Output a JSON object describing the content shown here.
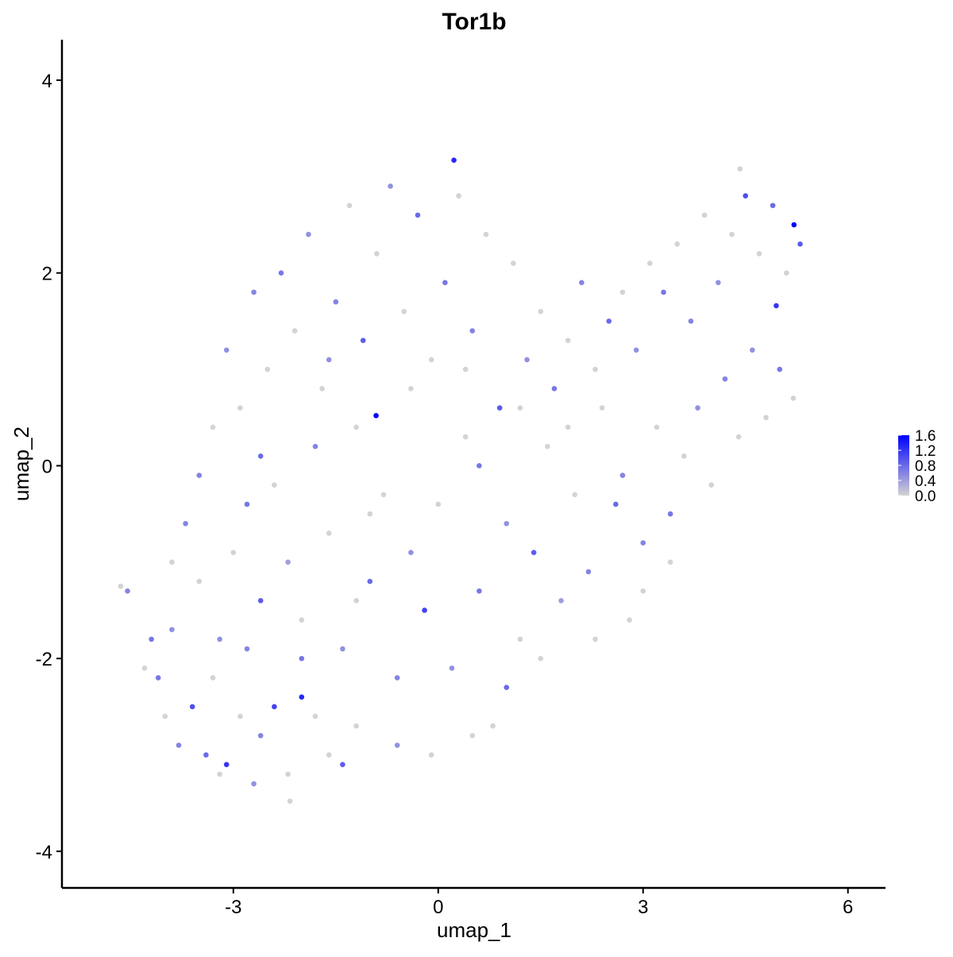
{
  "chart_data": {
    "type": "scatter",
    "title": "Tor1b",
    "x_label": "umap_1",
    "y_label": "umap_2",
    "xlim": [
      -5.51,
      6.55
    ],
    "ylim": [
      -4.38,
      4.42
    ],
    "xticks": [
      -3,
      0,
      3,
      6
    ],
    "yticks": [
      -4,
      -2,
      0,
      2,
      4
    ],
    "low_color": "#d3d3d3",
    "high_color": "#0000ff",
    "color_lim": [
      0,
      1.6
    ],
    "color_ticks": [
      {
        "value": 0,
        "label": "0.0"
      },
      {
        "value": 0.4,
        "label": "0.4"
      },
      {
        "value": 0.8,
        "label": "0.8"
      },
      {
        "value": 1.2,
        "label": "1.2"
      },
      {
        "value": 1.6,
        "label": "1.6"
      }
    ],
    "x": [
      5.21,
      -0.91,
      0.23,
      4.95,
      -4.65,
      -2.17,
      4.42,
      -4.55,
      -4.3,
      -4.1,
      -3.9,
      -3.6,
      -3.4,
      -3.1,
      -2.9,
      -2.6,
      -2.4,
      -2.2,
      -2.0,
      -1.8,
      -1.4,
      -1.2,
      -3.7,
      -3.5,
      -3.2,
      -3.0,
      -2.8,
      -2.6,
      -2.4,
      -2.2,
      -2.0,
      -1.8,
      -1.6,
      -1.4,
      -1.2,
      -1.0,
      -0.8,
      -0.6,
      -0.4,
      -0.2,
      0.0,
      0.2,
      0.4,
      0.6,
      0.8,
      1.0,
      1.2,
      1.4,
      1.6,
      1.8,
      2.0,
      2.2,
      2.4,
      2.6,
      2.8,
      3.0,
      3.2,
      3.4,
      3.6,
      3.8,
      4.0,
      4.2,
      4.4,
      4.6,
      4.8,
      5.0,
      5.2,
      5.3,
      5.1,
      4.9,
      4.7,
      4.5,
      4.3,
      4.1,
      3.9,
      3.7,
      3.5,
      3.3,
      3.1,
      2.9,
      2.7,
      2.5,
      2.3,
      2.1,
      1.9,
      1.7,
      1.5,
      1.3,
      1.1,
      0.9,
      0.7,
      0.5,
      0.3,
      0.1,
      -0.1,
      -0.3,
      -0.5,
      -0.7,
      -0.9,
      -1.1,
      -1.3,
      -1.5,
      -1.7,
      -1.9,
      -2.1,
      -2.3,
      -2.5,
      -2.7,
      -2.9,
      -3.1,
      -3.3,
      -3.5,
      -3.9,
      -4.2,
      -4.0,
      -3.8,
      -3.2,
      -2.7,
      -1.6,
      -0.6,
      -0.1,
      0.5,
      1.0,
      1.5,
      2.3,
      3.0,
      3.4,
      2.7,
      1.9,
      -2.6,
      -1.0,
      0.6,
      -0.4,
      1.2,
      -1.6,
      -2.0,
      -3.3,
      -2.8,
      0.4,
      -1.2
    ],
    "y": [
      2.5,
      0.52,
      3.17,
      1.66,
      -1.25,
      -3.48,
      3.08,
      -1.3,
      -2.1,
      -2.2,
      -1.7,
      -2.5,
      -3.0,
      -3.1,
      -2.6,
      -2.8,
      -2.5,
      -3.2,
      -2.0,
      -2.6,
      -3.1,
      -2.7,
      -0.6,
      -1.2,
      -1.8,
      -0.9,
      -0.4,
      -1.4,
      -0.2,
      -1.0,
      -1.6,
      0.2,
      -0.7,
      -1.9,
      0.4,
      -1.2,
      -0.3,
      -2.2,
      0.8,
      -1.5,
      -0.4,
      -2.1,
      0.3,
      -1.3,
      -2.7,
      -0.6,
      -1.8,
      -0.9,
      0.2,
      -1.4,
      -0.3,
      -1.1,
      0.6,
      -0.4,
      -1.6,
      -0.8,
      0.4,
      -0.5,
      0.1,
      0.6,
      -0.2,
      0.9,
      0.3,
      1.2,
      0.5,
      1.0,
      0.7,
      2.3,
      2.0,
      2.7,
      2.2,
      2.8,
      2.4,
      1.9,
      2.6,
      1.5,
      2.3,
      1.8,
      2.1,
      1.2,
      1.8,
      1.5,
      1.0,
      1.9,
      1.3,
      0.8,
      1.6,
      1.1,
      2.1,
      0.6,
      2.4,
      1.4,
      2.8,
      1.9,
      1.1,
      2.6,
      1.6,
      2.9,
      2.2,
      1.3,
      2.7,
      1.7,
      0.8,
      2.4,
      1.4,
      2.0,
      1.0,
      1.8,
      0.6,
      1.2,
      0.4,
      -0.1,
      -1.0,
      -1.8,
      -2.6,
      -2.9,
      -3.2,
      -3.3,
      -3.0,
      -2.9,
      -3.0,
      -2.8,
      -2.3,
      -2.0,
      -1.8,
      -1.3,
      -1.0,
      -0.1,
      0.4,
      0.1,
      -0.5,
      0.0,
      -0.9,
      0.6,
      1.1,
      -2.4,
      -2.2,
      -1.9,
      1.0,
      -1.4
    ],
    "expression": [
      1.6,
      1.6,
      1.3,
      1.2,
      0,
      0,
      0,
      0.6,
      0,
      0.7,
      0.5,
      1.0,
      0.8,
      1.2,
      0,
      0.6,
      1.1,
      0,
      0.7,
      0,
      0.9,
      0,
      0.6,
      0,
      0.5,
      0,
      0.7,
      0.9,
      0,
      0.4,
      0,
      0.6,
      0,
      0.5,
      0,
      0.8,
      0,
      0.6,
      0,
      1.1,
      0,
      0.5,
      0,
      0.7,
      0,
      0.5,
      0,
      0.9,
      0,
      0.4,
      0,
      0.6,
      0,
      0.8,
      0,
      0.6,
      0,
      0.7,
      0,
      0.5,
      0,
      0.6,
      0,
      0.5,
      0,
      0.7,
      0,
      0.9,
      0,
      0.8,
      0,
      1.0,
      0,
      0.5,
      0,
      0.6,
      0,
      0.7,
      0,
      0.5,
      0,
      0.8,
      0,
      0.6,
      0,
      0.7,
      0,
      0.5,
      0,
      0.9,
      0,
      0.6,
      0,
      0.7,
      0,
      0.8,
      0,
      0.5,
      0,
      0.9,
      0,
      0.6,
      0,
      0.5,
      0,
      0.7,
      0,
      0.6,
      0,
      0.5,
      0,
      0.6,
      0,
      0.7,
      0,
      0.6,
      0,
      0.5,
      0,
      0.5,
      0,
      0,
      0.8,
      0,
      0,
      0,
      0,
      0.6,
      0,
      0.8,
      0,
      0.7,
      0.5,
      0,
      0.5,
      1.3,
      0,
      0.6,
      0,
      0
    ]
  }
}
